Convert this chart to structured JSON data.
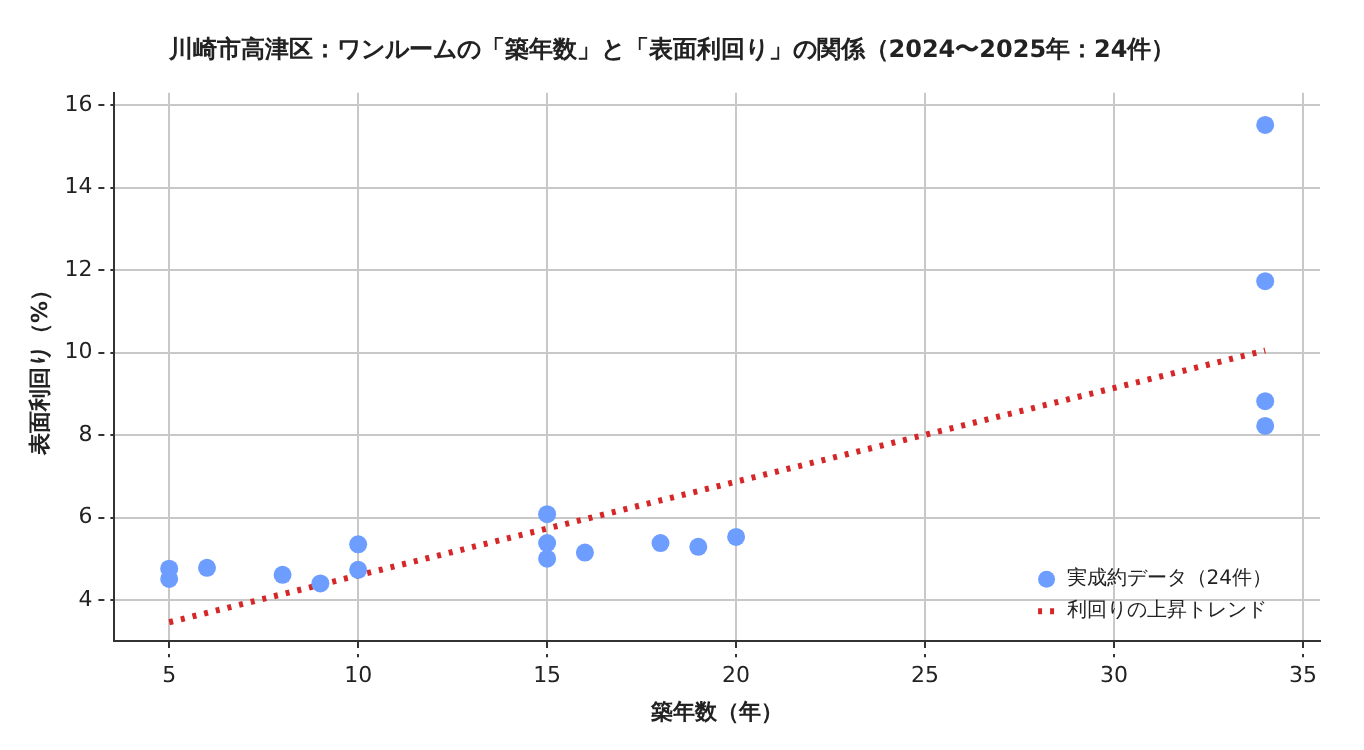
{
  "chart_data": {
    "type": "scatter",
    "title": "川崎市高津区：ワンルームの「築年数」と「表面利回り」の関係（2024〜2025年：24件）",
    "xlabel": "築年数（年）",
    "ylabel": "表面利回り（%）",
    "series": [
      {
        "name": "実成約データ（24件）",
        "color": "#6d9eff",
        "marker": "circle",
        "x": [
          5,
          5,
          6,
          8,
          9,
          10,
          10,
          15,
          15,
          15,
          16,
          18,
          19,
          20,
          34,
          34,
          34,
          34
        ],
        "values": [
          4.76,
          4.51,
          4.78,
          4.61,
          4.4,
          5.35,
          4.73,
          6.08,
          5.38,
          5.0,
          5.15,
          5.38,
          5.29,
          5.53,
          15.52,
          11.73,
          8.82,
          8.22
        ]
      },
      {
        "name": "利回りの上昇トレンド",
        "type": "line",
        "color": "#d62728",
        "line_style": "dotted",
        "marker": "none",
        "x": [
          5,
          34
        ],
        "values": [
          3.46,
          10.05
        ]
      }
    ],
    "xlim": [
      3.55,
      35.45
    ],
    "xticks": [
      5,
      10,
      15,
      20,
      25,
      30,
      35
    ],
    "ylim": [
      3,
      16.3
    ],
    "yticks": [
      4,
      6,
      8,
      10,
      12,
      14,
      16
    ],
    "grid": true,
    "legend": "bottom right"
  }
}
